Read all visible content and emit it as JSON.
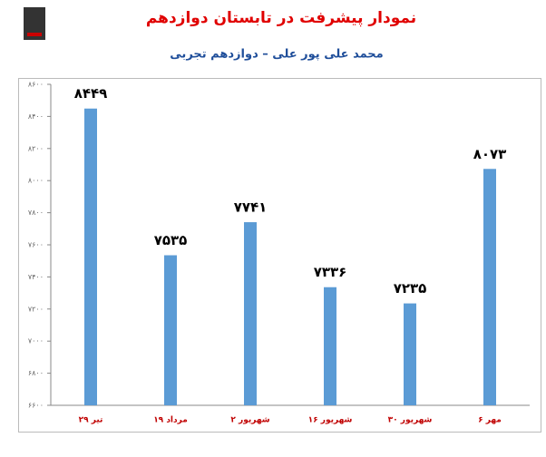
{
  "chart_data": {
    "type": "bar",
    "title": "نمودار پیشرفت در تابستان دوازدهم",
    "subtitle": "محمد علی پور علی – دوازدهم تجربی",
    "categories": [
      "۲۹ تیر",
      "۱۹ مرداد",
      "۲ شهریور",
      "۱۶ شهریور",
      "۳۰ شهریور",
      "۶ مهر"
    ],
    "values": [
      8449,
      7535,
      7741,
      7336,
      7235,
      8073
    ],
    "value_labels": [
      "۸۴۴۹",
      "۷۵۳۵",
      "۷۷۴۱",
      "۷۳۳۶",
      "۷۲۳۵",
      "۸۰۷۳"
    ],
    "color": "#5b9bd5",
    "ylim": [
      6600,
      8600
    ],
    "yticks": [
      {
        "value": 6600,
        "label": "۶۶۰۰"
      },
      {
        "value": 6800,
        "label": "۶۸۰۰"
      },
      {
        "value": 7000,
        "label": "۷۰۰۰"
      },
      {
        "value": 7200,
        "label": "۷۲۰۰"
      },
      {
        "value": 7400,
        "label": "۷۴۰۰"
      },
      {
        "value": 7600,
        "label": "۷۶۰۰"
      },
      {
        "value": 7800,
        "label": "۷۸۰۰"
      },
      {
        "value": 8000,
        "label": "۸۰۰۰"
      },
      {
        "value": 8200,
        "label": "۸۲۰۰"
      },
      {
        "value": 8400,
        "label": "۸۴۰۰"
      },
      {
        "value": 8600,
        "label": "۸۶۰۰"
      }
    ],
    "grid": false
  }
}
